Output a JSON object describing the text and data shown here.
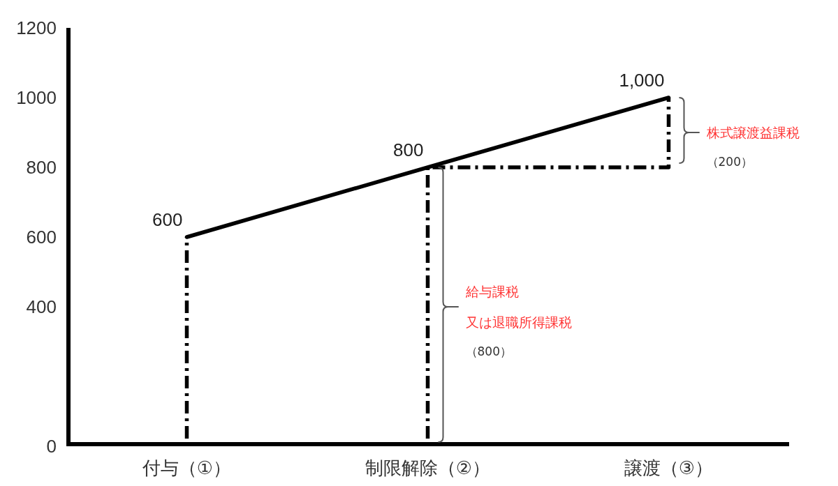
{
  "chart_data": {
    "type": "line",
    "categories": [
      "付与（①）",
      "制限解除（②）",
      "譲渡（③）"
    ],
    "series": [
      {
        "color": "#000000",
        "values": [
          600,
          800,
          1000
        ],
        "value_labels": [
          "600",
          "800",
          "1,000"
        ]
      },
      {
        "color": "#000000",
        "x": [
          "付与（①）",
          "付与（①）"
        ],
        "values": [
          0,
          600
        ],
        "line_style": "dashed"
      },
      {
        "color": "#000000",
        "x": [
          "制限解除（②）",
          "制限解除（②）",
          "譲渡（③）",
          "譲渡（③）"
        ],
        "values": [
          0,
          800,
          800,
          1000
        ],
        "line_style": "dashed"
      }
    ],
    "ylim": [
      0,
      1200
    ],
    "yticks": [
      0,
      400,
      600,
      800,
      1000,
      1200
    ],
    "annotations": [
      {
        "text": "給与課税",
        "x": "制限解除（②）",
        "y": 400
      },
      {
        "text": "又は退職所得課税",
        "x": "制限解除（②）",
        "y": 400
      },
      "（800）",
      {
        "text": "株式譲渡益課税",
        "x": "譲渡（③）",
        "y": 900
      },
      "（200）"
    ],
    "line_style": "solid"
  }
}
